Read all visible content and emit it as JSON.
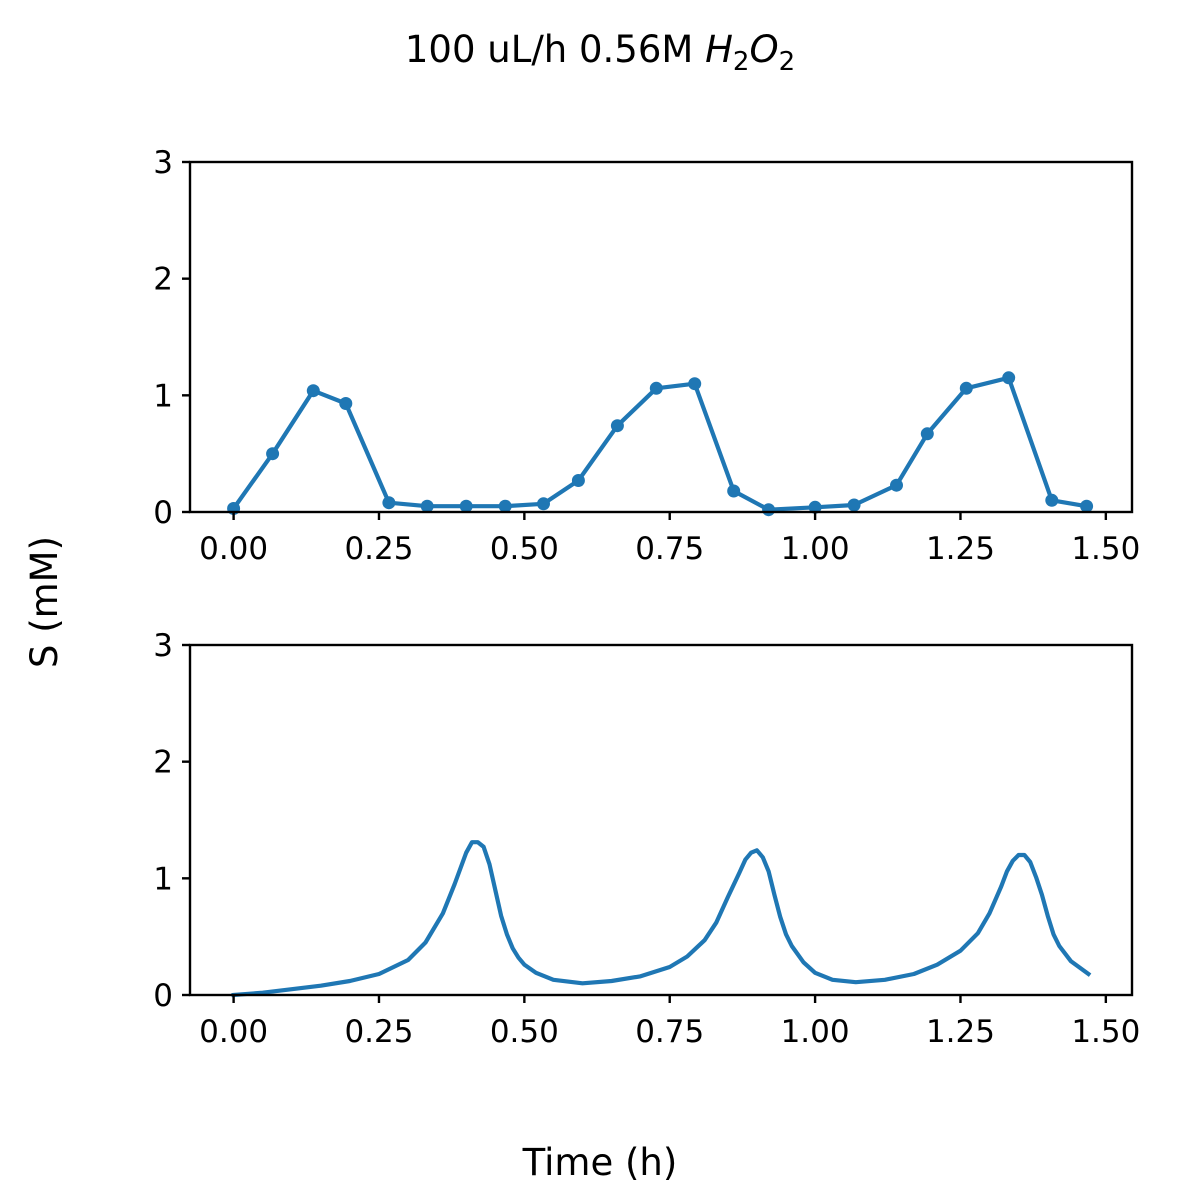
{
  "figure": {
    "title_main": "100 uL/h 0.56M ",
    "title_chem": [
      {
        "text": "H",
        "sub": "2"
      },
      {
        "text": "O",
        "sub": "2"
      }
    ],
    "xlabel": "Time (h)",
    "ylabel": "S (mM)"
  },
  "colors": {
    "series": "#1f77b4"
  },
  "chart_data": [
    {
      "type": "line",
      "name": "measured",
      "markers": true,
      "xlim": [
        -0.075,
        1.545
      ],
      "ylim": [
        0,
        3
      ],
      "xticks": [
        0.0,
        0.25,
        0.5,
        0.75,
        1.0,
        1.25,
        1.5
      ],
      "xtick_labels": [
        "0.00",
        "0.25",
        "0.50",
        "0.75",
        "1.00",
        "1.25",
        "1.50"
      ],
      "yticks": [
        0,
        1,
        2,
        3
      ],
      "ytick_labels": [
        "0",
        "1",
        "2",
        "3"
      ],
      "x": [
        0.0,
        0.067,
        0.137,
        0.193,
        0.267,
        0.333,
        0.4,
        0.467,
        0.533,
        0.593,
        0.66,
        0.727,
        0.793,
        0.86,
        0.92,
        1.0,
        1.067,
        1.14,
        1.193,
        1.26,
        1.333,
        1.407,
        1.467
      ],
      "y": [
        0.03,
        0.5,
        1.04,
        0.93,
        0.08,
        0.05,
        0.05,
        0.05,
        0.07,
        0.27,
        0.74,
        1.06,
        1.1,
        0.18,
        0.02,
        0.04,
        0.06,
        0.23,
        0.67,
        1.06,
        1.15,
        0.1,
        0.05
      ]
    },
    {
      "type": "line",
      "name": "model",
      "markers": false,
      "xlim": [
        -0.075,
        1.545
      ],
      "ylim": [
        0,
        3
      ],
      "xticks": [
        0.0,
        0.25,
        0.5,
        0.75,
        1.0,
        1.25,
        1.5
      ],
      "xtick_labels": [
        "0.00",
        "0.25",
        "0.50",
        "0.75",
        "1.00",
        "1.25",
        "1.50"
      ],
      "yticks": [
        0,
        1,
        2,
        3
      ],
      "ytick_labels": [
        "0",
        "1",
        "2",
        "3"
      ],
      "x": [
        0.0,
        0.05,
        0.1,
        0.15,
        0.2,
        0.25,
        0.3,
        0.33,
        0.36,
        0.38,
        0.4,
        0.41,
        0.42,
        0.43,
        0.44,
        0.45,
        0.46,
        0.47,
        0.48,
        0.49,
        0.5,
        0.52,
        0.55,
        0.6,
        0.65,
        0.7,
        0.75,
        0.78,
        0.81,
        0.83,
        0.85,
        0.87,
        0.88,
        0.89,
        0.9,
        0.91,
        0.92,
        0.93,
        0.94,
        0.95,
        0.96,
        0.98,
        1.0,
        1.03,
        1.07,
        1.12,
        1.17,
        1.21,
        1.25,
        1.28,
        1.3,
        1.32,
        1.33,
        1.34,
        1.35,
        1.36,
        1.37,
        1.38,
        1.39,
        1.4,
        1.41,
        1.42,
        1.44,
        1.47
      ],
      "y": [
        0.0,
        0.02,
        0.05,
        0.08,
        0.12,
        0.18,
        0.3,
        0.45,
        0.7,
        0.95,
        1.22,
        1.31,
        1.31,
        1.27,
        1.12,
        0.9,
        0.68,
        0.52,
        0.4,
        0.32,
        0.26,
        0.19,
        0.13,
        0.1,
        0.12,
        0.16,
        0.24,
        0.33,
        0.47,
        0.62,
        0.84,
        1.05,
        1.16,
        1.22,
        1.24,
        1.18,
        1.06,
        0.86,
        0.67,
        0.52,
        0.42,
        0.28,
        0.19,
        0.13,
        0.11,
        0.13,
        0.18,
        0.26,
        0.38,
        0.53,
        0.7,
        0.93,
        1.06,
        1.15,
        1.2,
        1.2,
        1.14,
        1.01,
        0.86,
        0.68,
        0.52,
        0.42,
        0.29,
        0.18
      ]
    }
  ]
}
